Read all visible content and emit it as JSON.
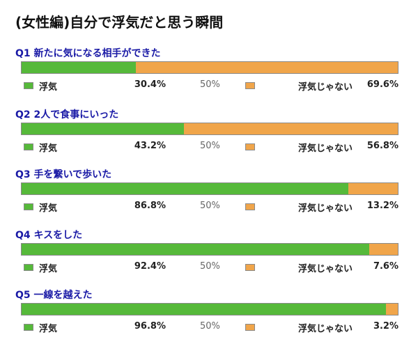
{
  "title": "(女性編)自分で浮気だと思う瞬間",
  "colors": {
    "uwaki": "#56b93a",
    "not_uwaki": "#f0a54a"
  },
  "legend": {
    "label_a": "浮気",
    "label_b": "浮気じゃない",
    "mid": "50%"
  },
  "questions": [
    {
      "q": "Q1 新たに気になる相手ができた",
      "a_text": "30.4%",
      "b_text": "69.6%"
    },
    {
      "q": "Q2 2人で食事にいった",
      "a_text": "43.2%",
      "b_text": "56.8%"
    },
    {
      "q": "Q3 手を繋いで歩いた",
      "a_text": "86.8%",
      "b_text": "13.2%"
    },
    {
      "q": "Q4 キスをした",
      "a_text": "92.4%",
      "b_text": "7.6%"
    },
    {
      "q": "Q5 一線を越えた",
      "a_text": "96.8%",
      "b_text": "3.2%"
    }
  ],
  "chart_data": {
    "type": "bar",
    "orientation": "horizontal-stacked-100",
    "title": "(女性編)自分で浮気だと思う瞬間",
    "categories": [
      "Q1 新たに気になる相手ができた",
      "Q2 2人で食事にいった",
      "Q3 手を繋いで歩いた",
      "Q4 キスをした",
      "Q5 一線を越えた"
    ],
    "series": [
      {
        "name": "浮気",
        "values": [
          30.4,
          43.2,
          86.8,
          92.4,
          96.8
        ]
      },
      {
        "name": "浮気じゃない",
        "values": [
          69.6,
          56.8,
          13.2,
          7.6,
          3.2
        ]
      }
    ],
    "xlim": [
      0,
      100
    ],
    "legend": "below-each-bar"
  }
}
